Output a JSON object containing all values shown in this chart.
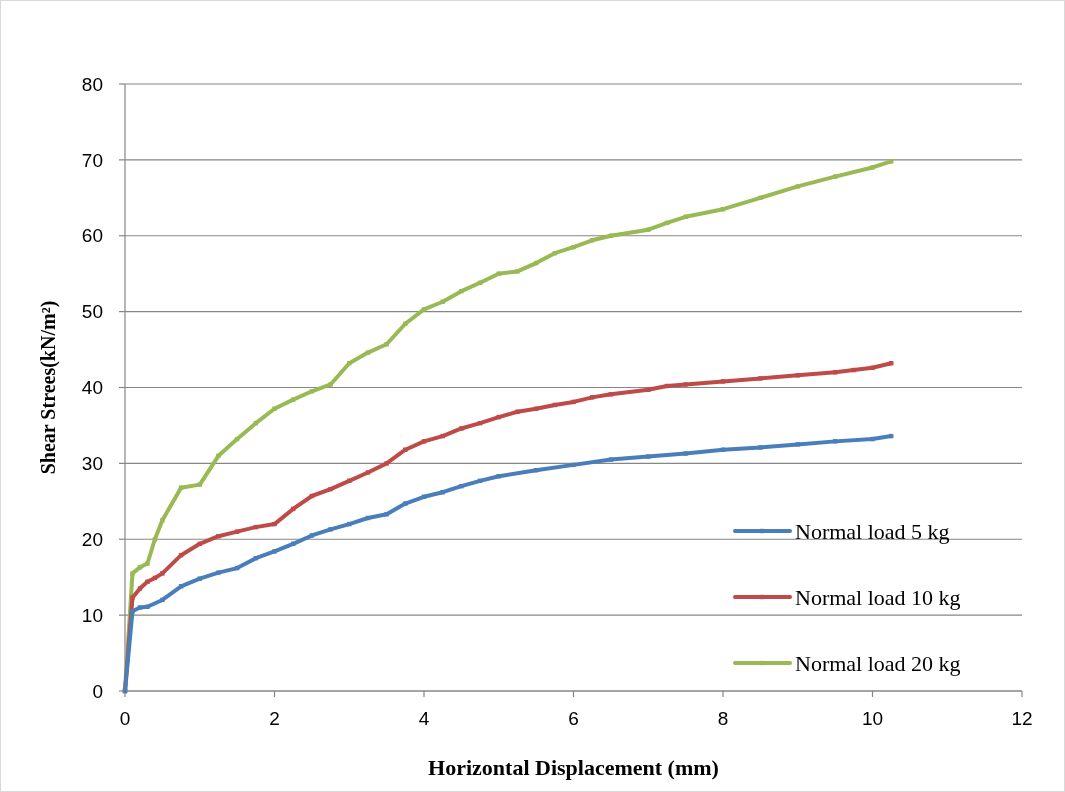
{
  "chart_data": {
    "type": "line",
    "xlabel": "Horizontal Displacement (mm)",
    "ylabel": "Shear Strees(kN/m²)",
    "xlim": [
      0,
      12
    ],
    "xticks": [
      0,
      2,
      4,
      6,
      8,
      10,
      12
    ],
    "ylim": [
      0,
      80
    ],
    "yticks": [
      0,
      10,
      20,
      30,
      40,
      50,
      60,
      70,
      80
    ],
    "grid": "y",
    "legend": "right",
    "marker": "square",
    "line_style": "solid",
    "series": [
      {
        "name": "Normal load 5 kg",
        "color": "#4a7ebb",
        "x": [
          0,
          0.1,
          0.2,
          0.3,
          0.5,
          0.75,
          1,
          1.25,
          1.5,
          1.75,
          2,
          2.25,
          2.5,
          2.75,
          3,
          3.25,
          3.5,
          3.75,
          4,
          4.25,
          4.5,
          4.75,
          5,
          5.5,
          6,
          6.5,
          7,
          7.5,
          8,
          8.5,
          9,
          9.5,
          10,
          10.25
        ],
        "values": [
          0,
          10.5,
          11,
          11.1,
          12,
          13.8,
          14.8,
          15.6,
          16.2,
          17.5,
          18.4,
          19.4,
          20.5,
          21.3,
          22,
          22.8,
          23.3,
          24.7,
          25.6,
          26.2,
          27,
          27.7,
          28.3,
          29.1,
          29.8,
          30.5,
          30.9,
          31.3,
          31.8,
          32.1,
          32.5,
          32.9,
          33.2,
          33.6
        ]
      },
      {
        "name": "Normal load 10 kg",
        "color": "#be4b48",
        "x": [
          0,
          0.1,
          0.2,
          0.3,
          0.4,
          0.5,
          0.75,
          1,
          1.25,
          1.5,
          1.75,
          2,
          2.25,
          2.5,
          2.75,
          3,
          3.25,
          3.5,
          3.75,
          4,
          4.25,
          4.5,
          4.75,
          5,
          5.25,
          5.5,
          5.75,
          6,
          6.25,
          6.5,
          7,
          7.25,
          7.5,
          8,
          8.5,
          9,
          9.5,
          9.75,
          10,
          10.25
        ],
        "values": [
          0,
          12.3,
          13.5,
          14.4,
          14.9,
          15.5,
          17.9,
          19.4,
          20.4,
          21,
          21.6,
          22,
          24,
          25.7,
          26.6,
          27.7,
          28.8,
          30,
          31.8,
          32.9,
          33.6,
          34.6,
          35.3,
          36.1,
          36.8,
          37.2,
          37.7,
          38.1,
          38.7,
          39.1,
          39.7,
          40.2,
          40.4,
          40.8,
          41.2,
          41.6,
          42,
          42.3,
          42.6,
          43.2
        ]
      },
      {
        "name": "Normal load 20 kg",
        "color": "#98b954",
        "x": [
          0,
          0.1,
          0.2,
          0.3,
          0.4,
          0.5,
          0.75,
          1,
          1.25,
          1.5,
          1.75,
          2,
          2.25,
          2.5,
          2.75,
          3,
          3.25,
          3.5,
          3.75,
          4,
          4.25,
          4.5,
          4.75,
          5,
          5.25,
          5.5,
          5.75,
          6,
          6.25,
          6.5,
          7,
          7.25,
          7.5,
          8,
          8.5,
          9,
          9.5,
          10,
          10.25
        ],
        "values": [
          0,
          15.5,
          16.3,
          16.8,
          20,
          22.5,
          26.8,
          27.2,
          31,
          33.2,
          35.3,
          37.2,
          38.4,
          39.5,
          40.4,
          43.2,
          44.6,
          45.7,
          48.4,
          50.3,
          51.3,
          52.7,
          53.8,
          55,
          55.3,
          56.4,
          57.7,
          58.5,
          59.4,
          60,
          60.8,
          61.7,
          62.5,
          63.5,
          65,
          66.5,
          67.8,
          69,
          69.8
        ]
      }
    ]
  }
}
